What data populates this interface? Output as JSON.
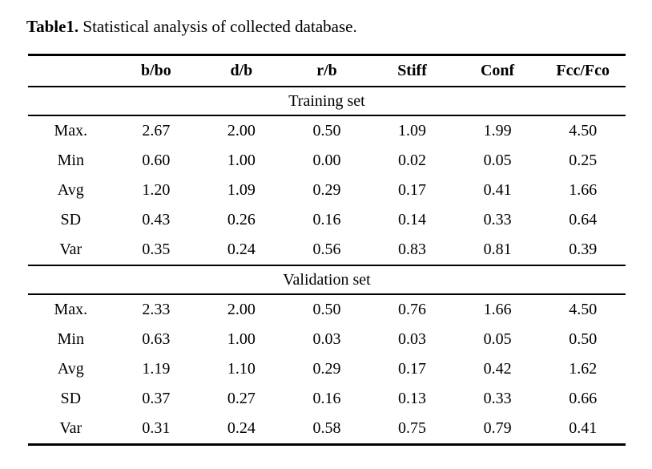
{
  "page": {
    "background_color": "#ffffff",
    "text_color": "#000000"
  },
  "caption": {
    "label": "Table1.",
    "text": " Statistical analysis of collected database."
  },
  "table": {
    "columns": [
      "",
      "b/bo",
      "d/b",
      "r/b",
      "Stiff",
      "Conf",
      "Fcc/Fco"
    ],
    "sections": [
      {
        "title": "Training set",
        "rows": [
          {
            "label": "Max.",
            "values": [
              "2.67",
              "2.00",
              "0.50",
              "1.09",
              "1.99",
              "4.50"
            ]
          },
          {
            "label": "Min",
            "values": [
              "0.60",
              "1.00",
              "0.00",
              "0.02",
              "0.05",
              "0.25"
            ]
          },
          {
            "label": "Avg",
            "values": [
              "1.20",
              "1.09",
              "0.29",
              "0.17",
              "0.41",
              "1.66"
            ]
          },
          {
            "label": "SD",
            "values": [
              "0.43",
              "0.26",
              "0.16",
              "0.14",
              "0.33",
              "0.64"
            ]
          },
          {
            "label": "Var",
            "values": [
              "0.35",
              "0.24",
              "0.56",
              "0.83",
              "0.81",
              "0.39"
            ]
          }
        ]
      },
      {
        "title": "Validation set",
        "rows": [
          {
            "label": "Max.",
            "values": [
              "2.33",
              "2.00",
              "0.50",
              "0.76",
              "1.66",
              "4.50"
            ]
          },
          {
            "label": "Min",
            "values": [
              "0.63",
              "1.00",
              "0.03",
              "0.03",
              "0.05",
              "0.50"
            ]
          },
          {
            "label": "Avg",
            "values": [
              "1.19",
              "1.10",
              "0.29",
              "0.17",
              "0.42",
              "1.62"
            ]
          },
          {
            "label": "SD",
            "values": [
              "0.37",
              "0.27",
              "0.16",
              "0.13",
              "0.33",
              "0.66"
            ]
          },
          {
            "label": "Var",
            "values": [
              "0.31",
              "0.24",
              "0.58",
              "0.75",
              "0.79",
              "0.41"
            ]
          }
        ]
      }
    ]
  }
}
